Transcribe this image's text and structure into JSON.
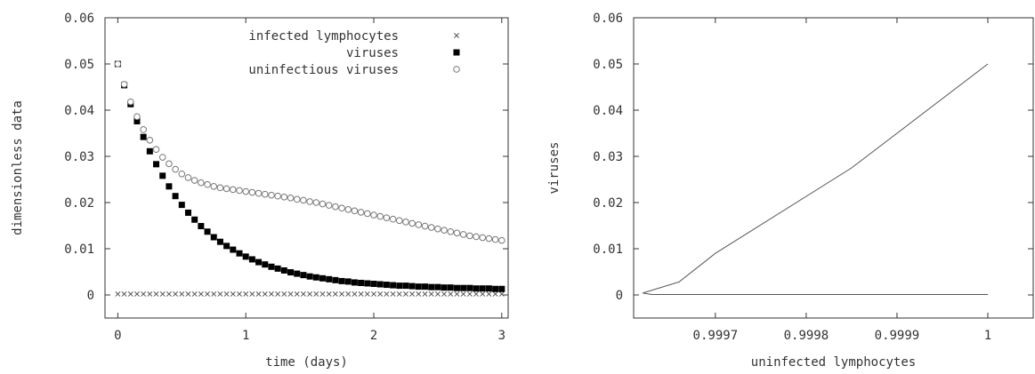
{
  "chart_data": [
    {
      "type": "scatter",
      "xlabel": "time (days)",
      "ylabel": "dimensionless data",
      "xlim": [
        -0.1,
        3.05
      ],
      "ylim": [
        -0.005,
        0.06
      ],
      "xticks": [
        0,
        1,
        2,
        3
      ],
      "xtick_labels": [
        "0",
        "1",
        "2",
        "3"
      ],
      "yticks": [
        0,
        0.01,
        0.02,
        0.03,
        0.04,
        0.05,
        0.06
      ],
      "ytick_labels": [
        "0",
        "0.01",
        "0.02",
        "0.03",
        "0.04",
        "0.05",
        "0.06"
      ],
      "grid": false,
      "legend_position": "top-right",
      "x": [
        0,
        0.05,
        0.1,
        0.15,
        0.2,
        0.25,
        0.3,
        0.35,
        0.4,
        0.45,
        0.5,
        0.55,
        0.6,
        0.65,
        0.7,
        0.75,
        0.8,
        0.85,
        0.9,
        0.95,
        1,
        1.05,
        1.1,
        1.15,
        1.2,
        1.25,
        1.3,
        1.35,
        1.4,
        1.45,
        1.5,
        1.55,
        1.6,
        1.65,
        1.7,
        1.75,
        1.8,
        1.85,
        1.9,
        1.95,
        2,
        2.05,
        2.1,
        2.15,
        2.2,
        2.25,
        2.3,
        2.35,
        2.4,
        2.45,
        2.5,
        2.55,
        2.6,
        2.65,
        2.7,
        2.75,
        2.8,
        2.85,
        2.9,
        2.95,
        3
      ],
      "series": [
        {
          "name": "infected lymphocytes",
          "marker": "x",
          "color": "#555555",
          "values": [
            0.0002,
            0.0002,
            0.0002,
            0.0002,
            0.0002,
            0.0002,
            0.0002,
            0.0002,
            0.0002,
            0.0002,
            0.0002,
            0.0002,
            0.0002,
            0.0002,
            0.0002,
            0.0002,
            0.0002,
            0.0002,
            0.0002,
            0.0002,
            0.0002,
            0.0002,
            0.0002,
            0.0002,
            0.0002,
            0.0002,
            0.0002,
            0.0002,
            0.0002,
            0.0002,
            0.0002,
            0.0002,
            0.0002,
            0.0002,
            0.0002,
            0.0002,
            0.0002,
            0.0002,
            0.0002,
            0.0002,
            0.0002,
            0.0002,
            0.0002,
            0.0002,
            0.0002,
            0.0002,
            0.0002,
            0.0002,
            0.0002,
            0.0002,
            0.0002,
            0.0002,
            0.0002,
            0.0002,
            0.0002,
            0.0002,
            0.0002,
            0.0002,
            0.0002,
            0.0002,
            0.0002
          ]
        },
        {
          "name": "viruses",
          "marker": "filled-square",
          "color": "#000000",
          "values": [
            0.05,
            0.0454,
            0.0413,
            0.0376,
            0.0342,
            0.0311,
            0.0283,
            0.0258,
            0.0235,
            0.0214,
            0.0195,
            0.0178,
            0.0163,
            0.0149,
            0.0137,
            0.0125,
            0.0115,
            0.0106,
            0.0098,
            0.009,
            0.0083,
            0.0077,
            0.0071,
            0.0066,
            0.0061,
            0.0057,
            0.0053,
            0.0049,
            0.0046,
            0.0043,
            0.004,
            0.0038,
            0.0036,
            0.0034,
            0.0032,
            0.003,
            0.0029,
            0.0027,
            0.0026,
            0.0025,
            0.0024,
            0.0023,
            0.0022,
            0.0021,
            0.002,
            0.002,
            0.0019,
            0.0018,
            0.0018,
            0.0017,
            0.0017,
            0.0016,
            0.0016,
            0.0015,
            0.0015,
            0.0015,
            0.0014,
            0.0014,
            0.0014,
            0.0013,
            0.0013
          ]
        },
        {
          "name": "uninfectious viruses",
          "marker": "open-circle",
          "color": "#777777",
          "values": [
            0.05,
            0.0456,
            0.0418,
            0.0386,
            0.0358,
            0.0335,
            0.0315,
            0.0298,
            0.0284,
            0.0272,
            0.0262,
            0.0254,
            0.0248,
            0.0243,
            0.0239,
            0.0235,
            0.0232,
            0.023,
            0.0228,
            0.0226,
            0.0224,
            0.0222,
            0.022,
            0.0218,
            0.0216,
            0.0214,
            0.0212,
            0.021,
            0.0207,
            0.0205,
            0.0202,
            0.02,
            0.0197,
            0.0194,
            0.0191,
            0.0188,
            0.0185,
            0.0182,
            0.0179,
            0.0176,
            0.0173,
            0.017,
            0.0167,
            0.0164,
            0.0161,
            0.0158,
            0.0155,
            0.0152,
            0.0149,
            0.0146,
            0.0143,
            0.014,
            0.0137,
            0.0134,
            0.0131,
            0.0128,
            0.0126,
            0.0124,
            0.0122,
            0.012,
            0.0118
          ]
        }
      ]
    },
    {
      "type": "line",
      "xlabel": "uninfected lymphocytes",
      "ylabel": "viruses",
      "xlim": [
        0.99961,
        1.00005
      ],
      "ylim": [
        -0.005,
        0.06
      ],
      "xticks": [
        0.9997,
        0.9998,
        0.9999,
        1
      ],
      "xtick_labels": [
        "0.9997",
        "0.9998",
        "0.9999",
        "1"
      ],
      "yticks": [
        0,
        0.01,
        0.02,
        0.03,
        0.04,
        0.05,
        0.06
      ],
      "ytick_labels": [
        "0",
        "0.01",
        "0.02",
        "0.03",
        "0.04",
        "0.05",
        "0.06"
      ],
      "grid": false,
      "legend": false,
      "series": [
        {
          "color": "#555555",
          "x": [
            1,
            0.99985,
            0.9997,
            0.99966,
            0.99962,
            0.99963,
            1
          ],
          "y": [
            0.05,
            0.0275,
            0.009,
            0.0028,
            0.0004,
            0.0001,
            0.0001
          ]
        }
      ]
    }
  ]
}
